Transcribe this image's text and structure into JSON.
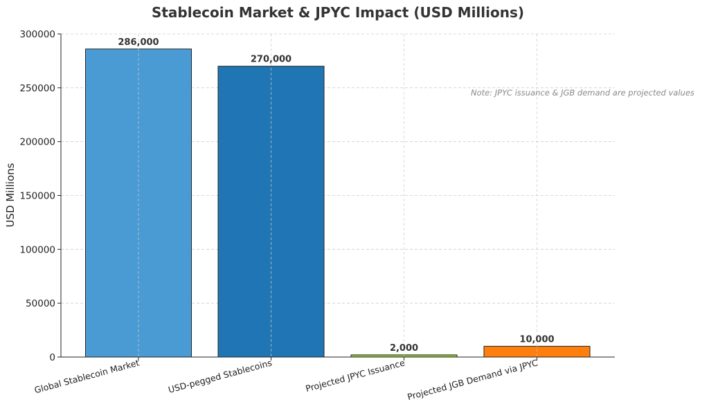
{
  "chart_data": {
    "type": "bar",
    "title": "Stablecoin Market & JPYC Impact (USD Millions)",
    "xlabel": "",
    "ylabel": "USD Millions",
    "ylim": [
      0,
      300000
    ],
    "yticks": [
      0,
      50000,
      100000,
      150000,
      200000,
      250000,
      300000
    ],
    "categories": [
      "Global Stablecoin Market",
      "USD-pegged Stablecoins",
      "Projected JPYC Issuance",
      "Projected JGB Demand via JPYC"
    ],
    "values": [
      286000,
      270000,
      2000,
      10000
    ],
    "value_labels": [
      "286,000",
      "270,000",
      "2,000",
      "10,000"
    ],
    "colors": [
      "#4a9bd4",
      "#2076b4",
      "#9acd32",
      "#ff7f0e"
    ],
    "grid": true,
    "annotations": [
      "Note: JPYC issuance & JGB demand are projected values"
    ]
  }
}
